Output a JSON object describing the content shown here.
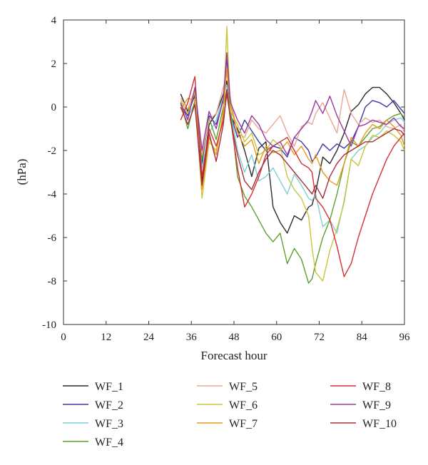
{
  "chart_data": {
    "type": "line",
    "title": "",
    "xlabel": "Forecast hour",
    "ylabel": "(hPa)",
    "xlim": [
      0,
      96
    ],
    "ylim": [
      -10,
      4
    ],
    "x_ticks": [
      0,
      12,
      24,
      36,
      48,
      60,
      72,
      84,
      96
    ],
    "y_ticks": [
      -10,
      -8,
      -6,
      -4,
      -2,
      0,
      2,
      4
    ],
    "grid": false,
    "legend_position": "bottom",
    "x": [
      33,
      35,
      37,
      39,
      41,
      43,
      45,
      46,
      47,
      49,
      51,
      53,
      55,
      57,
      59,
      61,
      63,
      65,
      67,
      69,
      70,
      71,
      73,
      75,
      77,
      79,
      81,
      83,
      85,
      87,
      89,
      91,
      93,
      95,
      96
    ],
    "series": [
      {
        "name": "WF_1",
        "color": "#2b2b2b",
        "values": [
          0.6,
          -0.2,
          0.5,
          -3.4,
          -0.8,
          -0.3,
          0.6,
          1.2,
          -0.4,
          -1.0,
          -2.0,
          -3.2,
          -1.9,
          -1.6,
          -4.6,
          -5.3,
          -5.8,
          -5.0,
          -5.2,
          -4.6,
          -4.5,
          -3.9,
          -2.3,
          -2.6,
          -2.0,
          -1.2,
          -0.2,
          0.1,
          0.6,
          0.9,
          0.9,
          0.6,
          0.2,
          -0.3,
          -0.6
        ]
      },
      {
        "name": "WF_2",
        "color": "#3a3aa8",
        "values": [
          0.1,
          -0.4,
          0.6,
          -2.6,
          -0.4,
          -0.8,
          0.3,
          2.3,
          -0.3,
          -1.4,
          -0.6,
          -1.1,
          -1.6,
          -2.0,
          -1.8,
          -1.9,
          -2.3,
          -1.4,
          -1.6,
          -2.0,
          -2.5,
          -2.3,
          -1.7,
          -2.0,
          -1.7,
          -1.9,
          -1.6,
          -0.9,
          0.0,
          0.3,
          0.2,
          0.0,
          0.3,
          -0.1,
          -0.3
        ]
      },
      {
        "name": "WF_3",
        "color": "#7fcfd3",
        "values": [
          0.0,
          -0.5,
          0.2,
          -2.8,
          -1.2,
          -0.6,
          0.5,
          1.0,
          -0.2,
          -2.0,
          -3.0,
          -2.2,
          -3.4,
          -3.2,
          -2.8,
          -3.4,
          -4.0,
          -3.1,
          -3.6,
          -4.2,
          -4.3,
          -4.0,
          -5.5,
          -5.2,
          -5.8,
          -4.3,
          -2.4,
          -2.0,
          -1.8,
          -1.4,
          -1.2,
          -0.8,
          -0.6,
          -0.5,
          -0.7
        ]
      },
      {
        "name": "WF_4",
        "color": "#5aa02c",
        "values": [
          0.2,
          -1.0,
          0.3,
          -2.4,
          -0.5,
          -1.5,
          0.0,
          0.8,
          -0.1,
          -3.2,
          -4.1,
          -4.6,
          -5.2,
          -5.8,
          -6.2,
          -5.8,
          -7.2,
          -6.5,
          -7.0,
          -8.1,
          -7.9,
          -7.2,
          -6.0,
          -5.2,
          -4.0,
          -2.6,
          -1.6,
          -1.8,
          -1.4,
          -1.0,
          -0.9,
          -0.6,
          -0.4,
          -0.3,
          -0.5
        ]
      },
      {
        "name": "WF_5",
        "color": "#e8a894",
        "values": [
          0.4,
          -0.1,
          0.8,
          -2.2,
          -0.6,
          -0.3,
          0.9,
          1.5,
          0.4,
          -1.2,
          -1.4,
          -0.6,
          -1.0,
          -1.2,
          -0.8,
          -0.4,
          -1.2,
          -1.8,
          -0.9,
          -0.7,
          -0.8,
          -0.3,
          0.2,
          -0.5,
          -1.2,
          0.8,
          -0.3,
          -0.8,
          -0.5,
          -0.7,
          -0.6,
          -0.9,
          -1.0,
          -0.8,
          -1.2
        ]
      },
      {
        "name": "WF_6",
        "color": "#c9c63a",
        "values": [
          0.3,
          -0.3,
          0.7,
          -4.2,
          -1.6,
          -2.0,
          -0.4,
          3.7,
          -0.2,
          -0.8,
          -1.6,
          -1.2,
          -2.2,
          -2.0,
          -1.5,
          -1.8,
          -3.2,
          -3.8,
          -4.2,
          -5.0,
          -6.5,
          -7.6,
          -8.0,
          -6.6,
          -5.6,
          -4.4,
          -2.4,
          -2.7,
          -1.8,
          -1.3,
          -1.4,
          -1.1,
          -1.3,
          -1.6,
          -2.0
        ]
      },
      {
        "name": "WF_7",
        "color": "#e89a1c",
        "values": [
          -0.1,
          0.4,
          0.3,
          -3.8,
          -1.4,
          -2.2,
          -0.2,
          1.8,
          0.1,
          -1.2,
          -1.8,
          -1.5,
          -2.6,
          -1.8,
          -2.1,
          -2.0,
          -1.6,
          -2.2,
          -1.8,
          -2.4,
          -2.6,
          -2.2,
          -3.0,
          -3.4,
          -3.6,
          -2.6,
          -1.4,
          -1.8,
          -1.2,
          -0.8,
          -1.0,
          -0.6,
          -0.9,
          -1.3,
          -1.8
        ]
      },
      {
        "name": "WF_8",
        "color": "#d33030",
        "values": [
          -0.6,
          0.2,
          1.4,
          -3.2,
          -1.0,
          -1.8,
          -0.6,
          0.6,
          -0.5,
          -2.8,
          -4.6,
          -4.0,
          -3.2,
          -2.2,
          -1.8,
          -1.6,
          -1.4,
          -2.0,
          -2.6,
          -2.8,
          -3.0,
          -4.2,
          -4.6,
          -5.2,
          -6.4,
          -7.8,
          -7.2,
          -6.0,
          -5.0,
          -4.0,
          -3.2,
          -2.4,
          -1.8,
          -1.4,
          -1.2
        ]
      },
      {
        "name": "WF_9",
        "color": "#9a3a9e",
        "values": [
          0.2,
          -0.6,
          0.9,
          -2.0,
          -0.2,
          -1.0,
          0.4,
          2.5,
          0.2,
          -0.6,
          -1.2,
          -0.4,
          -0.8,
          -1.5,
          -1.8,
          -1.6,
          -2.2,
          -1.4,
          -1.0,
          -0.6,
          -0.2,
          0.3,
          -0.3,
          0.5,
          -0.4,
          -1.1,
          -1.8,
          -0.9,
          -0.8,
          -0.6,
          -0.7,
          -0.8,
          -0.5,
          -0.9,
          -1.0
        ]
      },
      {
        "name": "WF_10",
        "color": "#a82c3e",
        "values": [
          0.0,
          -0.8,
          0.1,
          -3.6,
          -1.2,
          -2.5,
          -0.8,
          0.8,
          -0.6,
          -2.2,
          -3.4,
          -3.8,
          -3.0,
          -2.4,
          -2.0,
          -2.2,
          -2.6,
          -3.0,
          -3.4,
          -3.8,
          -4.0,
          -3.6,
          -4.2,
          -3.2,
          -2.6,
          -2.2,
          -2.0,
          -1.8,
          -1.6,
          -1.6,
          -1.4,
          -1.2,
          -1.0,
          -1.1,
          -1.3
        ]
      }
    ]
  }
}
